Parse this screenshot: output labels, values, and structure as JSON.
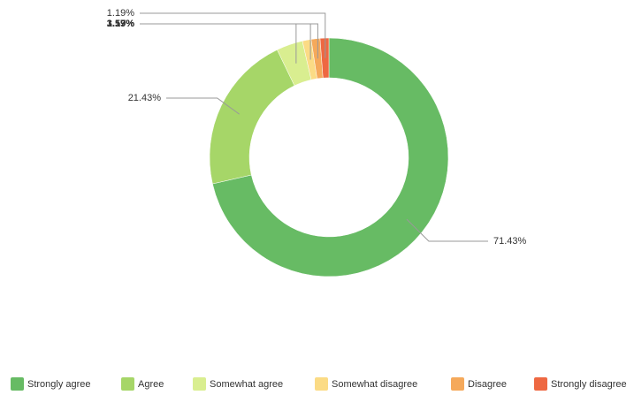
{
  "chart_data": {
    "type": "donut",
    "categories": [
      "Strongly agree",
      "Agree",
      "Somewhat agree",
      "Somewhat disagree",
      "Disagree",
      "Strongly disagree"
    ],
    "values": [
      71.43,
      21.43,
      3.57,
      1.19,
      1.19,
      1.19
    ],
    "value_labels": [
      "71.43%",
      "21.43%",
      "3.57%",
      "1.19%",
      "1.19%",
      "1.19%"
    ],
    "colors": [
      "#67bb64",
      "#a6d668",
      "#d9ee90",
      "#fbdb85",
      "#f5a95b",
      "#ee6842"
    ],
    "legend": "bottom"
  }
}
